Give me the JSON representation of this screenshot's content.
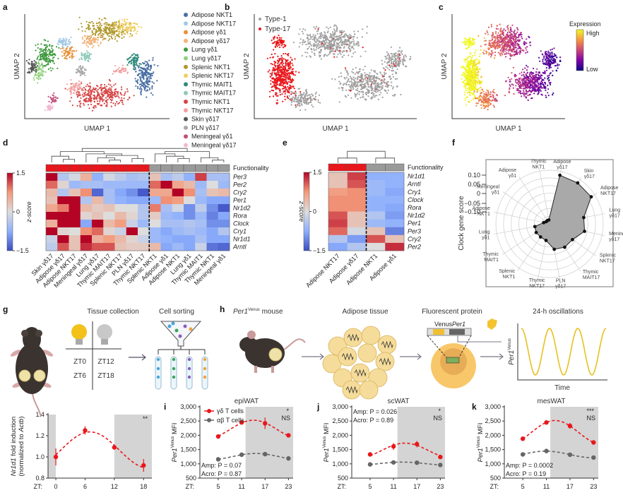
{
  "panel_labels": [
    "a",
    "b",
    "c",
    "d",
    "e",
    "f",
    "g",
    "h",
    "i",
    "j",
    "k"
  ],
  "umap": {
    "xlabel": "UMAP 1",
    "ylabel": "UMAP 2",
    "legend_a": [
      {
        "label": "Adipose NKT1",
        "color": "#4a6fa5"
      },
      {
        "label": "Adipose NKT17",
        "color": "#a3c8e4"
      },
      {
        "label": "Adipose γδ1",
        "color": "#e8913a"
      },
      {
        "label": "Adipose γδ17",
        "color": "#f4b27a"
      },
      {
        "label": "Lung γδ1",
        "color": "#3d9a3d"
      },
      {
        "label": "Lung γδ17",
        "color": "#92d07e"
      },
      {
        "label": "Splenic NKT1",
        "color": "#b0982e"
      },
      {
        "label": "Splenic NKT17",
        "color": "#f0cf5e"
      },
      {
        "label": "Thymic MAIT1",
        "color": "#2f8a7a"
      },
      {
        "label": "Thymic MAIT17",
        "color": "#8cc8b8"
      },
      {
        "label": "Thymic NKT1",
        "color": "#d64545"
      },
      {
        "label": "Thymic NKT17",
        "color": "#f4a0a0"
      },
      {
        "label": "Skin γδ17",
        "color": "#555555"
      },
      {
        "label": "PLN γδ17",
        "color": "#a8a8a8"
      },
      {
        "label": "Meningeal γδ1",
        "color": "#c0507a"
      },
      {
        "label": "Meningeal γδ17",
        "color": "#f2b8d0"
      }
    ],
    "legend_b": [
      {
        "label": "Type-1",
        "color": "#a0a0a0"
      },
      {
        "label": "Type-17",
        "color": "#e8171b"
      }
    ],
    "colorbar": {
      "title": "Expression",
      "high": "High",
      "low": "Low",
      "colors": [
        "#0d0887",
        "#7e03a8",
        "#cc4778",
        "#f89540",
        "#f0f921"
      ]
    }
  },
  "colors": {
    "type17": "#e8171b",
    "type1": "#9a9a9a",
    "shade": "#d4d4d4"
  },
  "schematic": {
    "g": {
      "title_collection": "Tissue collection",
      "title_sorting": "Cell sorting",
      "zt": [
        "ZT0",
        "ZT12",
        "ZT6",
        "ZT18"
      ]
    },
    "h": {
      "mouse_gene": "Per1",
      "mouse_sup": "Venus",
      "mouse_rest": " mouse",
      "adipose": "Adipose tissue",
      "fluor": "Fluorescent protein",
      "construct_venus": "Venus",
      "construct_per1": "Per1",
      "osc_title": "24-h oscillations",
      "osc_xlabel": "Time",
      "osc_ylabel_gene": "Per1",
      "osc_ylabel_sup": "Venus"
    }
  },
  "chart_data": [
    {
      "type": "heatmap",
      "row_header": "Functionality",
      "colorbar_label": "z-score",
      "colorbar_ticks": [
        "1.5",
        "0",
        "−1.5"
      ],
      "vlim": [
        -1.5,
        1.5
      ],
      "functionality_colors": [
        "#e8171b",
        "#e8171b",
        "#e8171b",
        "#e8171b",
        "#e8171b",
        "#e8171b",
        "#e8171b",
        "#e8171b",
        "#e8171b",
        "#9a9a9a",
        "#9a9a9a",
        "#9a9a9a",
        "#9a9a9a",
        "#9a9a9a",
        "#9a9a9a",
        "#9a9a9a"
      ],
      "columns": [
        "Skin γδ17",
        "Adipose γδ17",
        "Adipose NKT17",
        "Meningeal γδ17",
        "Lung γδ17",
        "Thymic MAIT17",
        "Splenic NKT17",
        "PLN γδ17",
        "Thymic NKT17",
        "Splenic NKT1",
        "Adipose γδ1",
        "Adipose NKT1",
        "Lung γδ1",
        "Thymic MAIT1",
        "Thymic NKT1",
        "Meningeal γδ1"
      ],
      "rows": [
        "Per3",
        "Per2",
        "Cry2",
        "Per1",
        "Nr1d2",
        "Rora",
        "Clock",
        "Cry1",
        "Nr1d1",
        "Arntl"
      ],
      "values": [
        [
          1.5,
          -0.4,
          -0.1,
          0.5,
          -0.7,
          -0.1,
          -0.3,
          -0.5,
          -0.4,
          0.3,
          -0.5,
          -0.3,
          -0.7,
          1.2,
          -0.5,
          -0.5
        ],
        [
          1.0,
          0.1,
          -0.6,
          -0.5,
          -0.5,
          -0.6,
          -0.6,
          -0.6,
          -0.6,
          1.0,
          1.5,
          0.6,
          0.4,
          -0.6,
          0.0,
          -0.6
        ],
        [
          0.4,
          -0.4,
          0.3,
          0.8,
          -1.3,
          -0.5,
          -0.8,
          -1.0,
          -1.4,
          0.6,
          0.6,
          1.5,
          0.8,
          -0.5,
          0.3,
          0.4
        ],
        [
          0.3,
          1.5,
          1.5,
          -0.4,
          0.4,
          -0.5,
          -0.7,
          -0.8,
          -0.8,
          -0.6,
          0.8,
          0.7,
          0.0,
          -0.6,
          -0.8,
          -0.8
        ],
        [
          0.6,
          0.9,
          1.5,
          0.4,
          0.2,
          0.3,
          0.0,
          0.0,
          -0.4,
          0.9,
          -0.5,
          -0.1,
          -1.0,
          -0.3,
          -1.0,
          -1.4
        ],
        [
          1.5,
          1.5,
          1.5,
          0.1,
          0.3,
          0.0,
          0.4,
          0.1,
          -0.4,
          0.2,
          -0.6,
          -0.7,
          -1.0,
          -0.6,
          -1.1,
          -0.8
        ],
        [
          0.5,
          1.5,
          1.5,
          -0.8,
          1.5,
          0.4,
          0.7,
          -0.2,
          -0.6,
          0.0,
          -0.5,
          -0.5,
          -0.4,
          -0.5,
          -1.0,
          -1.0
        ],
        [
          1.5,
          0.1,
          0.0,
          0.8,
          1.0,
          0.1,
          -0.2,
          1.5,
          0.0,
          -0.6,
          -0.8,
          -0.6,
          -0.5,
          -0.6,
          -0.8,
          -0.4
        ],
        [
          -0.2,
          1.5,
          0.3,
          1.5,
          0.5,
          0.7,
          0.4,
          0.1,
          -0.2,
          -0.6,
          -0.7,
          -0.8,
          -0.8,
          -0.5,
          -0.8,
          -0.8
        ],
        [
          -0.3,
          1.1,
          0.3,
          1.3,
          1.1,
          1.1,
          0.3,
          0.2,
          0.2,
          0.4,
          -0.8,
          -0.6,
          -0.8,
          -0.2,
          -1.2,
          -1.3
        ]
      ]
    },
    {
      "type": "heatmap",
      "row_header": "Functionality",
      "colorbar_label": "z-score",
      "colorbar_ticks": [
        "1.5",
        "0",
        "−1.5"
      ],
      "vlim": [
        -1.5,
        1.5
      ],
      "functionality_colors": [
        "#e8171b",
        "#e8171b",
        "#9a9a9a",
        "#9a9a9a"
      ],
      "columns": [
        "Adipose NKT17",
        "Adipose γδ17",
        "Adipose NKT1",
        "Adipose γδ1"
      ],
      "rows": [
        "Nr1d1",
        "Arntl",
        "Cry1",
        "Clock",
        "Rora",
        "Nr1d2",
        "Per1",
        "Per3",
        "Cry2",
        "Per2"
      ],
      "values": [
        [
          0.3,
          1.2,
          -0.7,
          -0.7
        ],
        [
          0.3,
          1.1,
          -0.6,
          -0.7
        ],
        [
          0.7,
          0.8,
          -0.6,
          -0.8
        ],
        [
          0.8,
          0.8,
          -0.7,
          -0.7
        ],
        [
          0.8,
          0.8,
          -0.7,
          -0.8
        ],
        [
          1.1,
          0.3,
          -0.4,
          -0.9
        ],
        [
          1.2,
          0.3,
          -0.6,
          -0.7
        ],
        [
          1.0,
          -0.1,
          0.3,
          -1.1
        ],
        [
          -0.4,
          -0.9,
          1.1,
          0.3
        ],
        [
          -0.8,
          -0.4,
          0.0,
          1.3
        ]
      ]
    },
    {
      "type": "radar",
      "ylabel": "Clock gene score",
      "tick_labels": [
        "0.10",
        "0.05",
        "0",
        "−0.05",
        "−0.10"
      ],
      "rlim": [
        -0.15,
        0.12
      ],
      "fill_color": "#a9a9a9",
      "axes": [
        [
          "Adipose",
          "γδ17"
        ],
        [
          "Skin",
          "γδ17"
        ],
        [
          "Adipose",
          "NKT17"
        ],
        [
          "Lung",
          "γδ17"
        ],
        [
          "Meningeal",
          "γδ17"
        ],
        [
          "Splenic",
          "NKT17"
        ],
        [
          "Thymic",
          "MAIT17"
        ],
        [
          "PLN",
          "γδ17"
        ],
        [
          "Thymic",
          "NKT17"
        ],
        [
          "Splenic",
          "NKT1"
        ],
        [
          "Thymic",
          "MAIT1"
        ],
        [
          "Lung",
          "γδ1"
        ],
        [
          "Adipose",
          "NKT1"
        ],
        [
          "Meningeal",
          "γδ1"
        ],
        [
          "Adipose",
          "γδ1"
        ],
        [
          "Thymic",
          "NKT1"
        ]
      ],
      "values": [
        0.1,
        0.1,
        0.1,
        0.025,
        0.03,
        -0.01,
        -0.01,
        -0.02,
        -0.065,
        -0.07,
        -0.07,
        -0.075,
        -0.12,
        -0.13,
        -0.13,
        -0.13
      ]
    },
    {
      "type": "line",
      "title": "",
      "xlabel_prefix": "ZT:",
      "ylabel": [
        [
          {
            "text": "Nr1d1",
            "italic": true
          },
          {
            "text": " fold induction"
          }
        ],
        [
          {
            "text": "(normalized to "
          },
          {
            "text": "Actb",
            "italic": true
          },
          {
            "text": ")"
          }
        ]
      ],
      "xlim": [
        -1.6,
        19.7
      ],
      "ylim": [
        0.8,
        1.4
      ],
      "xticks": [
        0,
        6,
        12,
        18
      ],
      "xtick_labels": [
        "0",
        "6",
        "12",
        "18"
      ],
      "yticks": [
        0.8,
        1.0,
        1.2,
        1.4
      ],
      "ytick_labels": [
        "0.8",
        "1.0",
        "1.2",
        "1.4"
      ],
      "shaded_ranges": [
        [
          -1.6,
          0
        ],
        [
          12,
          19.7
        ]
      ],
      "x": [
        0,
        6,
        12,
        18
      ],
      "series": [
        {
          "values": [
            1.0,
            1.25,
            1.09,
            0.92
          ],
          "errors": [
            0.08,
            0.04,
            0.02,
            0.06
          ],
          "color": "#e8171b"
        }
      ],
      "annotations": [
        {
          "text": "**",
          "color": "#e8171b"
        }
      ],
      "stats": []
    },
    {
      "type": "line",
      "title": "epiWAT",
      "xlabel_prefix": "ZT:",
      "ylabel": [
        [
          {
            "text": "Per1",
            "italic": true
          },
          {
            "text": "Venus",
            "sup": true
          },
          {
            "text": " MFI"
          }
        ]
      ],
      "xlim": [
        0.3,
        24.2
      ],
      "ylim": [
        500,
        3000
      ],
      "xticks": [
        5,
        11,
        17,
        23
      ],
      "xtick_labels": [
        "5",
        "11",
        "17",
        "23"
      ],
      "yticks": [
        500,
        1000,
        1500,
        2000,
        2500,
        3000
      ],
      "ytick_labels": [
        "500",
        "1,000",
        "1,500",
        "2,000",
        "2,500",
        "3,000"
      ],
      "shaded_ranges": [
        [
          12,
          24.2
        ]
      ],
      "x": [
        5,
        11,
        17,
        23
      ],
      "series": [
        {
          "name": "γδ T cells",
          "values": [
            1960,
            2450,
            2420,
            2000
          ],
          "errors": [
            40,
            50,
            200,
            70
          ],
          "color": "#e8171b"
        },
        {
          "name": "αβ T cells",
          "values": [
            1160,
            1320,
            1340,
            1190
          ],
          "errors": [
            30,
            30,
            40,
            30
          ],
          "color": "#666666"
        }
      ],
      "annotations": [
        {
          "text": "*",
          "color": "#e8171b"
        },
        {
          "text": "NS",
          "color": "#8a8a8a"
        }
      ],
      "stats": [
        "Amp: P = 0.07",
        "Acro: P = 0.87"
      ]
    },
    {
      "type": "line",
      "title": "scWAT",
      "xlabel_prefix": "ZT:",
      "ylabel": [
        [
          {
            "text": "Per1",
            "italic": true
          },
          {
            "text": "Venus",
            "sup": true
          },
          {
            "text": " MFI"
          }
        ]
      ],
      "xlim": [
        0.3,
        24.2
      ],
      "ylim": [
        500,
        3000
      ],
      "xticks": [
        5,
        11,
        17,
        23
      ],
      "xtick_labels": [
        "5",
        "11",
        "17",
        "23"
      ],
      "yticks": [
        500,
        1000,
        1500,
        2000,
        2500,
        3000
      ],
      "ytick_labels": [
        "500",
        "1,000",
        "1,500",
        "2,000",
        "2,500",
        "3,000"
      ],
      "shaded_ranges": [
        [
          12,
          24.2
        ]
      ],
      "x": [
        5,
        11,
        17,
        23
      ],
      "series": [
        {
          "values": [
            1330,
            1610,
            1690,
            1240
          ],
          "errors": [
            50,
            120,
            110,
            40
          ],
          "color": "#e8171b"
        },
        {
          "values": [
            980,
            1050,
            1040,
            960
          ],
          "errors": [
            20,
            20,
            30,
            20
          ],
          "color": "#666666"
        }
      ],
      "annotations": [
        {
          "text": "*",
          "color": "#e8171b"
        },
        {
          "text": "NS",
          "color": "#8a8a8a"
        }
      ],
      "stats": [
        "Amp: P = 0.026",
        "Acro: P = 0.89"
      ]
    },
    {
      "type": "line",
      "title": "mesWAT",
      "xlabel_prefix": "ZT:",
      "ylabel": [
        [
          {
            "text": "Per1",
            "italic": true
          },
          {
            "text": "Venus",
            "sup": true
          },
          {
            "text": " MFI"
          }
        ]
      ],
      "xlim": [
        0.3,
        24.2
      ],
      "ylim": [
        500,
        3000
      ],
      "xticks": [
        5,
        11,
        17,
        23
      ],
      "xtick_labels": [
        "5",
        "11",
        "17",
        "23"
      ],
      "yticks": [
        500,
        1000,
        1500,
        2000,
        2500,
        3000
      ],
      "ytick_labels": [
        "500",
        "1,000",
        "1,500",
        "2,000",
        "2,500",
        "3,000"
      ],
      "shaded_ranges": [
        [
          12,
          24.2
        ]
      ],
      "x": [
        5,
        11,
        17,
        23
      ],
      "series": [
        {
          "values": [
            1880,
            2450,
            2330,
            1750
          ],
          "errors": [
            40,
            40,
            100,
            40
          ],
          "color": "#e8171b"
        },
        {
          "values": [
            1330,
            1450,
            1320,
            1220
          ],
          "errors": [
            30,
            60,
            30,
            30
          ],
          "color": "#666666"
        }
      ],
      "annotations": [
        {
          "text": "***",
          "color": "#e8171b"
        },
        {
          "text": "NS",
          "color": "#8a8a8a"
        }
      ],
      "stats": [
        "Amp: P = 0.0002",
        "Acro: P = 0.19"
      ]
    }
  ]
}
